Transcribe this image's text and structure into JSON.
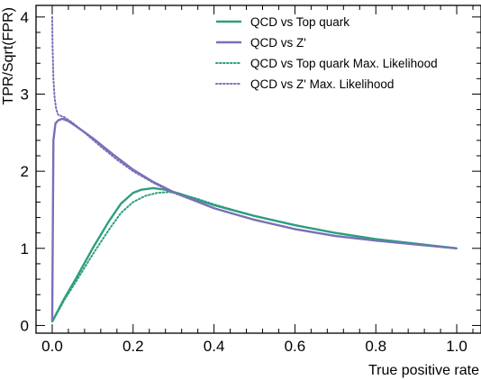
{
  "chart_data": {
    "type": "line",
    "title": "",
    "xlabel": "True positive rate",
    "ylabel": "TPR/Sqrt(FPR)",
    "xlim": [
      -0.04,
      1.06
    ],
    "ylim": [
      -0.1,
      4.15
    ],
    "xticks": [
      0.0,
      0.2,
      0.4,
      0.6,
      0.8,
      1.0
    ],
    "xtick_labels": [
      "0.0",
      "0.2",
      "0.4",
      "0.6",
      "0.8",
      "1.0"
    ],
    "yticks": [
      0,
      1,
      2,
      3,
      4
    ],
    "ytick_labels": [
      "0",
      "1",
      "2",
      "3",
      "4"
    ],
    "grid": false,
    "legend_position": "top-right",
    "series": [
      {
        "name": "QCD vs Top quark",
        "color": "#2e9e7f",
        "style": "solid",
        "x": [
          0.0,
          0.01,
          0.03,
          0.06,
          0.1,
          0.14,
          0.17,
          0.2,
          0.22,
          0.25,
          0.28,
          0.32,
          0.36,
          0.4,
          0.5,
          0.6,
          0.7,
          0.8,
          0.9,
          1.0
        ],
        "y": [
          0.05,
          0.15,
          0.35,
          0.62,
          1.0,
          1.35,
          1.58,
          1.72,
          1.76,
          1.78,
          1.76,
          1.7,
          1.63,
          1.56,
          1.42,
          1.3,
          1.2,
          1.12,
          1.06,
          1.0
        ]
      },
      {
        "name": "QCD vs Z'",
        "color": "#7b6fb8",
        "style": "solid",
        "x": [
          0.0,
          0.003,
          0.008,
          0.015,
          0.025,
          0.04,
          0.06,
          0.1,
          0.15,
          0.2,
          0.25,
          0.3,
          0.4,
          0.5,
          0.6,
          0.7,
          0.8,
          0.9,
          1.0
        ],
        "y": [
          0.05,
          2.4,
          2.62,
          2.66,
          2.68,
          2.65,
          2.58,
          2.43,
          2.22,
          2.02,
          1.86,
          1.73,
          1.52,
          1.37,
          1.25,
          1.16,
          1.1,
          1.05,
          1.0
        ]
      },
      {
        "name": "QCD vs Top quark Max. Likelihood",
        "color": "#2e9e7f",
        "style": "dotted",
        "x": [
          0.0,
          0.01,
          0.03,
          0.06,
          0.1,
          0.14,
          0.17,
          0.2,
          0.23,
          0.26,
          0.29,
          0.32,
          0.36,
          0.4,
          0.5,
          0.6,
          0.7,
          0.8,
          0.9,
          1.0
        ],
        "y": [
          0.05,
          0.14,
          0.33,
          0.58,
          0.92,
          1.24,
          1.46,
          1.6,
          1.68,
          1.72,
          1.73,
          1.7,
          1.64,
          1.57,
          1.42,
          1.3,
          1.2,
          1.12,
          1.06,
          1.0
        ]
      },
      {
        "name": "QCD vs Z' Max. Likelihood",
        "color": "#7b6fb8",
        "style": "dotted",
        "x": [
          0.0,
          0.001,
          0.003,
          0.006,
          0.01,
          0.015,
          0.02,
          0.03,
          0.05,
          0.08,
          0.12,
          0.16,
          0.2,
          0.25,
          0.3,
          0.4,
          0.5,
          0.6,
          0.7,
          0.8,
          0.9,
          1.0
        ],
        "y": [
          4.0,
          3.6,
          3.2,
          2.95,
          2.8,
          2.73,
          2.72,
          2.7,
          2.63,
          2.5,
          2.32,
          2.15,
          2.0,
          1.85,
          1.72,
          1.52,
          1.37,
          1.25,
          1.16,
          1.1,
          1.05,
          1.0
        ]
      }
    ]
  }
}
